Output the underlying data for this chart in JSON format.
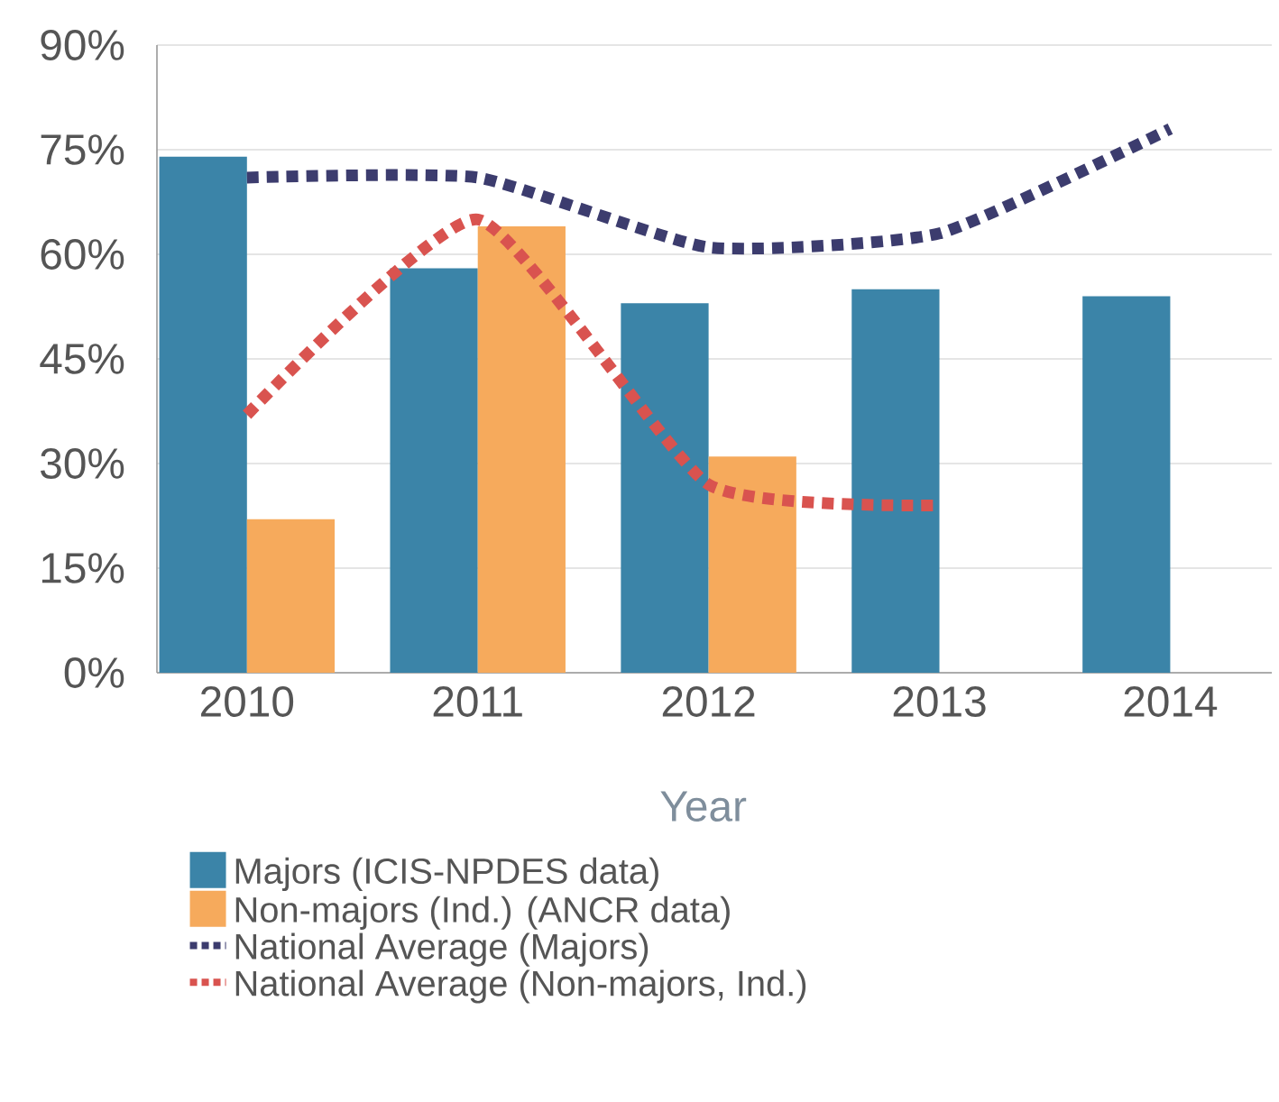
{
  "chart_data": {
    "type": "bar",
    "xlabel": "Year",
    "categories": [
      "2010",
      "2011",
      "2012",
      "2013",
      "2014"
    ],
    "series": [
      {
        "name": "Majors (ICIS-NPDES data)",
        "color": "#3b84a8",
        "values": [
          74,
          58,
          53,
          55,
          54
        ]
      },
      {
        "name": "Non-majors (Ind.) (ANCR data)",
        "color": "#f6aa5c",
        "values": [
          22,
          64,
          31,
          null,
          null
        ]
      },
      {
        "name": "National Average (Majors)",
        "type": "line",
        "color": "#3c3c6e",
        "line_style": "dotted",
        "values": [
          71,
          71,
          61,
          63,
          78
        ]
      },
      {
        "name": "National Average (Non-majors, Ind.)",
        "type": "line",
        "color": "#d9534f",
        "line_style": "dotted",
        "values": [
          37,
          65,
          27,
          24,
          null
        ]
      }
    ],
    "ylim": [
      0,
      90
    ],
    "yticks": [
      {
        "value": 0,
        "label": "0%"
      },
      {
        "value": 15,
        "label": "15%"
      },
      {
        "value": 30,
        "label": "30%"
      },
      {
        "value": 45,
        "label": "45%"
      },
      {
        "value": 60,
        "label": "60%"
      },
      {
        "value": 75,
        "label": "75%"
      },
      {
        "value": 90,
        "label": "90%"
      }
    ],
    "grid": "y",
    "legend": "bottom"
  }
}
